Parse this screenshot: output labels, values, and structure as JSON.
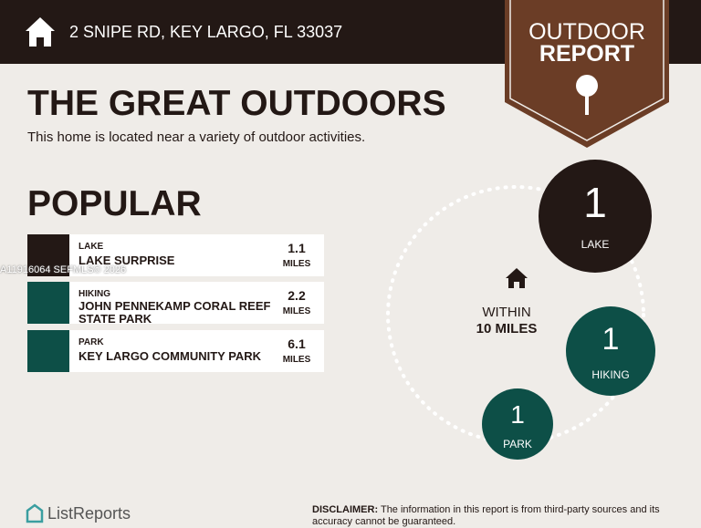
{
  "header": {
    "address": "2 SNIPE RD, KEY LARGO, FL 33037"
  },
  "badge": {
    "line1": "OUTDOOR",
    "line2": "REPORT"
  },
  "title": "THE GREAT OUTDOORS",
  "subtitle": "This home is located near a variety of outdoor activities.",
  "section": "POPULAR",
  "items": [
    {
      "category": "LAKE",
      "name": "LAKE SURPRISE",
      "distance": 1.1,
      "unit": "MILES"
    },
    {
      "category": "HIKING",
      "name": "JOHN PENNEKAMP CORAL REEF STATE PARK",
      "distance": 2.2,
      "unit": "MILES"
    },
    {
      "category": "PARK",
      "name": "KEY LARGO COMMUNITY PARK",
      "distance": 6.1,
      "unit": "MILES"
    }
  ],
  "radius": {
    "line1": "WITHIN",
    "line2": "10 MILES"
  },
  "counts": [
    {
      "count": 1,
      "label": "LAKE"
    },
    {
      "count": 1,
      "label": "HIKING"
    },
    {
      "count": 1,
      "label": "PARK"
    }
  ],
  "watermark": "A11916064  SEFMLS© 2026",
  "footer": {
    "logo": "ListReports",
    "disclaimer_label": "DISCLAIMER:",
    "disclaimer": "The information in this report is from third-party sources and its accuracy cannot be guaranteed."
  }
}
